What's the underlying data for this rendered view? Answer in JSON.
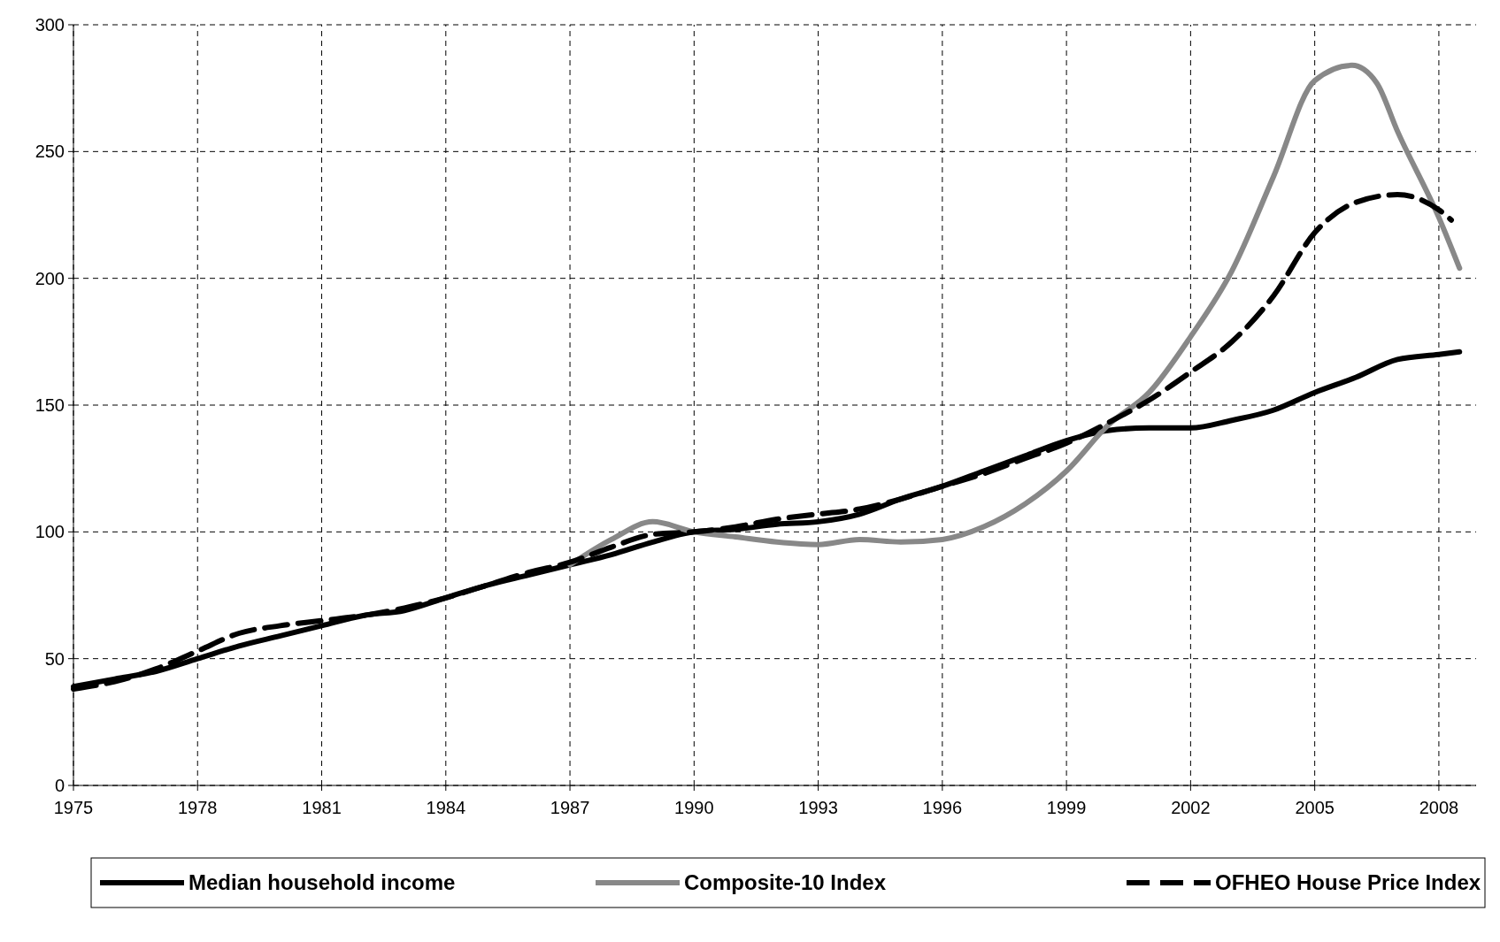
{
  "chart_data": {
    "type": "line",
    "xlim": [
      1975,
      2008.9
    ],
    "xticks": [
      1975,
      1978,
      1981,
      1984,
      1987,
      1990,
      1993,
      1996,
      1999,
      2002,
      2005,
      2008
    ],
    "ylim": [
      0,
      300
    ],
    "yticks": [
      0,
      50,
      100,
      150,
      200,
      250,
      300
    ],
    "grid": true,
    "legend": "bottom",
    "series": [
      {
        "name": "Median household income",
        "color": "#000000",
        "line_style": "solid",
        "x": [
          1975,
          1976,
          1977,
          1978,
          1979,
          1980,
          1981,
          1982,
          1983,
          1984,
          1985,
          1986,
          1987,
          1988,
          1989,
          1990,
          1991,
          1992,
          1993,
          1994,
          1995,
          1996,
          1997,
          1998,
          1999,
          2000,
          2001,
          2002,
          2003,
          2004,
          2005,
          2006,
          2007,
          2008,
          2008.5
        ],
        "values": [
          39,
          42,
          45,
          50,
          55,
          59,
          63,
          67,
          69,
          74,
          79,
          83,
          87,
          91,
          96,
          100,
          101,
          103,
          104,
          107,
          113,
          118,
          124,
          130,
          136,
          140,
          141,
          141,
          144,
          148,
          155,
          161,
          168,
          170,
          171
        ]
      },
      {
        "name": "Composite-10 Index",
        "color": "#888888",
        "line_style": "solid",
        "x": [
          1987,
          1988,
          1989,
          1990,
          1991,
          1992,
          1993,
          1994,
          1995,
          1996,
          1997,
          1998,
          1999,
          2000,
          2001,
          2002,
          2003,
          2004,
          2005,
          2005.9,
          2006.5,
          2007,
          2008,
          2008.5
        ],
        "values": [
          87,
          97,
          104,
          100,
          98,
          96,
          95,
          97,
          96,
          97,
          102,
          111,
          124,
          142,
          155,
          177,
          203,
          240,
          278,
          284,
          277,
          258,
          224,
          204
        ]
      },
      {
        "name": "OFHEO House Price Index",
        "color": "#000000",
        "line_style": "dashed",
        "x": [
          1975,
          1976,
          1977,
          1978,
          1979,
          1980,
          1981,
          1982,
          1983,
          1984,
          1985,
          1986,
          1987,
          1988,
          1989,
          1990,
          1991,
          1992,
          1993,
          1994,
          1995,
          1996,
          1997,
          1998,
          1999,
          2000,
          2001,
          2002,
          2003,
          2004,
          2005,
          2006,
          2007,
          2008,
          2008.3
        ],
        "values": [
          38,
          41,
          46,
          53,
          60,
          63,
          65,
          67,
          70,
          74,
          79,
          84,
          88,
          94,
          99,
          100,
          102,
          105,
          107,
          109,
          113,
          118,
          123,
          129,
          135,
          143,
          152,
          163,
          175,
          193,
          218,
          230,
          233,
          227,
          223
        ]
      }
    ]
  }
}
